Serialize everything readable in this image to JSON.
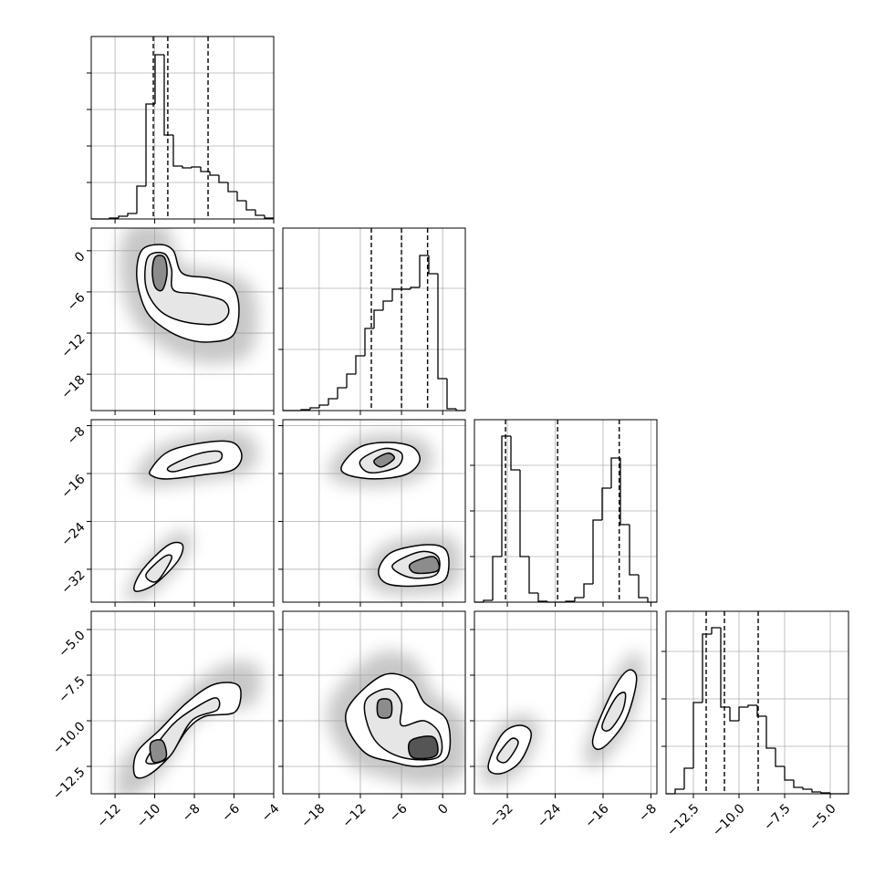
{
  "chart_data": {
    "type": "corner",
    "color": "#000000",
    "grid": true,
    "parameters": [
      {
        "lim": [
          -13.2,
          -4
        ],
        "ticks": [
          {
            "value": -12,
            "label": "−12"
          },
          {
            "value": -10,
            "label": "−10"
          },
          {
            "value": -8,
            "label": "−8"
          },
          {
            "value": -6,
            "label": "−6"
          },
          {
            "value": -4,
            "label": "−4"
          }
        ],
        "quantiles": [
          -10.07,
          -9.34,
          -7.31
        ],
        "hist": {
          "bins": [
            -13.2,
            -12.74,
            -12.28,
            -11.82,
            -11.36,
            -10.9,
            -10.44,
            -9.98,
            -9.52,
            -9.06,
            -8.6,
            -8.14,
            -7.68,
            -7.22,
            -6.76,
            -6.3,
            -5.84,
            -5.38,
            -4.92,
            -4.46,
            -4.0
          ],
          "counts": [
            0,
            0,
            1,
            3,
            6,
            36,
            126,
            180,
            92,
            58,
            56,
            57,
            52,
            48,
            40,
            30,
            20,
            10,
            4,
            1
          ],
          "ylim": [
            0,
            200
          ],
          "yticks": [
            40,
            80,
            120,
            160
          ]
        },
        "joint": []
      },
      {
        "lim": [
          -23.3,
          3.3
        ],
        "ticks": [
          {
            "value": -18,
            "label": "−18"
          },
          {
            "value": -12,
            "label": "−12"
          },
          {
            "value": -6,
            "label": "−6"
          },
          0
        ],
        "quantiles": [
          -10.4,
          -6.0,
          -2.2
        ],
        "hist": {
          "bins": [
            -23.3,
            -21.97,
            -20.64,
            -19.31,
            -17.98,
            -16.65,
            -15.32,
            -13.99,
            -12.66,
            -11.33,
            -10.0,
            -8.67,
            -7.34,
            -6.01,
            -4.68,
            -3.35,
            -2.02,
            -0.69,
            0.64,
            1.97,
            3.3
          ],
          "counts": [
            0,
            0,
            1,
            3,
            6,
            13,
            25,
            40,
            60,
            90,
            110,
            120,
            133,
            133,
            135,
            170,
            150,
            35,
            2,
            0
          ],
          "ylim": [
            0,
            200
          ],
          "yticks": [
            67,
            134
          ]
        },
        "joint": [
          {
            "contours": [
              {
                "x": [
                  -10.67,
                  -9.75,
                  -9.06,
                  -8.6,
                  -7.22,
                  -6.07,
                  -5.75,
                  -6.07,
                  -7.22,
                  -8.37,
                  -9.52,
                  -10.44,
                  -10.9
                ],
                "y": [
                  0.0,
                  0.9,
                  0.0,
                  -3.3,
                  -4.0,
                  -5.3,
                  -8.7,
                  -12.4,
                  -13.3,
                  -12.9,
                  -11.3,
                  -8.7,
                  -4.0
                ]
              },
              {
                "x": [
                  -10.35,
                  -9.52,
                  -9.15,
                  -9.06,
                  -7.91,
                  -6.53,
                  -6.3,
                  -6.99,
                  -8.6,
                  -9.75,
                  -10.44
                ],
                "y": [
                  -0.96,
                  -0.42,
                  -2.7,
                  -5.7,
                  -6.3,
                  -7.3,
                  -9.3,
                  -10.7,
                  -10.3,
                  -8.7,
                  -5.3
                ]
              },
              {
                "x": [
                  -9.98,
                  -9.52,
                  -9.38,
                  -9.61,
                  -9.98,
                  -10.12
                ],
                "y": [
                  -0.96,
                  -0.96,
                  -3.3,
                  -5.7,
                  -5.3,
                  -3.1
                ]
              }
            ]
          }
        ]
      },
      {
        "lim": [
          -37.5,
          -7
        ],
        "ticks": [
          {
            "value": -32,
            "label": "−32"
          },
          {
            "value": -24,
            "label": "−24"
          },
          {
            "value": -16,
            "label": "−16"
          },
          {
            "value": -8,
            "label": "−8"
          }
        ],
        "quantiles": [
          -32.3,
          -23.6,
          -13.3
        ],
        "hist": {
          "bins": [
            -37.5,
            -35.975,
            -34.45,
            -32.925,
            -31.4,
            -29.875,
            -28.35,
            -26.825,
            -25.3,
            -23.775,
            -22.25,
            -20.725,
            -19.2,
            -17.675,
            -16.15,
            -14.625,
            -13.1,
            -11.575,
            -10.05,
            -8.525,
            -7.0
          ],
          "counts": [
            0,
            2,
            50,
            182,
            145,
            50,
            10,
            1,
            0,
            0,
            1,
            5,
            20,
            90,
            125,
            158,
            85,
            30,
            5,
            0
          ],
          "ylim": [
            0,
            200
          ],
          "yticks": [
            50,
            100,
            150
          ]
        },
        "joint": [
          {
            "contours": [
              {
                "x": [
                  -10.21,
                  -9.29,
                  -7.45,
                  -6.07,
                  -5.61,
                  -6.07,
                  -7.45,
                  -9.29,
                  -10.07
                ],
                "y": [
                  -15.4,
                  -12.3,
                  -10.8,
                  -10.8,
                  -13.1,
                  -15.4,
                  -16.15,
                  -16.9,
                  -16.5
                ]
              },
              {
                "x": [
                  -9.29,
                  -7.91,
                  -6.76,
                  -6.76,
                  -8.14,
                  -9.06
                ],
                "y": [
                  -14.9,
                  -12.8,
                  -12.3,
                  -13.9,
                  -14.9,
                  -15.7
                ]
              },
              {
                "x": [
                  -11.0,
                  -10.44,
                  -9.29,
                  -8.6,
                  -8.83,
                  -9.98,
                  -10.9
                ],
                "y": [
                  -34.45,
                  -31.4,
                  -27.9,
                  -27.9,
                  -30.6,
                  -34.45,
                  -35.7
                ]
              },
              {
                "x": [
                  -10.44,
                  -9.52,
                  -9.15,
                  -9.89
                ],
                "y": [
                  -32.9,
                  -29.9,
                  -30.2,
                  -34.0
                ]
              }
            ]
          },
          {
            "contours": [
              {
                "x": [
                  -14.66,
                  -12.0,
                  -8.0,
                  -4.41,
                  -3.35,
                  -5.35,
                  -10.0,
                  -13.99
                ],
                "y": [
                  -14.6,
                  -11.55,
                  -10.8,
                  -11.55,
                  -13.85,
                  -16.15,
                  -16.9,
                  -16.15
                ]
              },
              {
                "x": [
                  -12.0,
                  -8.67,
                  -6.01,
                  -6.68,
                  -10.66
                ],
                "y": [
                  -13.85,
                  -11.85,
                  -12.6,
                  -14.9,
                  -15.85
                ]
              },
              {
                "x": [
                  -10.0,
                  -8.0,
                  -7.07,
                  -8.94
                ],
                "y": [
                  -13.85,
                  -12.6,
                  -13.5,
                  -14.9
                ]
              },
              {
                "x": [
                  -9.34,
                  -7.34,
                  -2.02,
                  0.64,
                  0.37,
                  -3.35,
                  -8.0
                ],
                "y": [
                  -32.2,
                  -29.1,
                  -27.9,
                  -29.1,
                  -33.7,
                  -34.75,
                  -34.45
                ]
              },
              {
                "x": [
                  -7.34,
                  -3.35,
                  -0.69,
                  -0.96,
                  -4.68
                ],
                "y": [
                  -31.4,
                  -29.1,
                  -29.9,
                  -32.9,
                  -33.4
                ]
              },
              {
                "x": [
                  -4.68,
                  -1.35,
                  -0.69,
                  -4.02
                ],
                "y": [
                  -31.1,
                  -29.9,
                  -32.2,
                  -32.6
                ]
              }
            ]
          }
        ]
      },
      {
        "lim": [
          -14,
          -4
        ],
        "ticks": [
          {
            "value": -12.5,
            "label": "−12.5"
          },
          {
            "value": -10,
            "label": "−10.0"
          },
          {
            "value": -7.5,
            "label": "−7.5"
          },
          {
            "value": -5,
            "label": "−5.0"
          }
        ],
        "quantiles": [
          -11.8,
          -10.8,
          -8.95
        ],
        "hist": {
          "bins": [
            -14,
            -13.5,
            -13,
            -12.5,
            -12,
            -11.5,
            -11,
            -10.5,
            -10,
            -9.5,
            -9,
            -8.5,
            -8,
            -7.5,
            -7,
            -6.5,
            -6,
            -5.5,
            -5,
            -4.5,
            -4
          ],
          "counts": [
            0,
            5,
            28,
            100,
            175,
            182,
            95,
            80,
            95,
            97,
            85,
            50,
            30,
            15,
            7,
            5,
            2,
            1,
            0,
            0
          ],
          "ylim": [
            0,
            200
          ],
          "yticks": [
            52,
            104,
            156
          ]
        },
        "joint": [
          {
            "contours": [
              {
                "x": [
                  -11.0,
                  -10.9,
                  -9.75,
                  -8.37,
                  -6.99,
                  -5.75,
                  -5.93,
                  -7.45,
                  -8.37,
                  -9.29,
                  -10.35
                ],
                "y": [
                  -13.0,
                  -11.75,
                  -10.5,
                  -9.0,
                  -8.0,
                  -8.1,
                  -9.5,
                  -9.75,
                  -10.5,
                  -12.0,
                  -13.0
                ]
              },
              {
                "x": [
                  -10.44,
                  -9.52,
                  -8.6,
                  -6.99,
                  -6.84,
                  -8.14,
                  -9.29
                ],
                "y": [
                  -12.25,
                  -10.75,
                  -9.75,
                  -8.75,
                  -9.4,
                  -10.0,
                  -12.0
                ]
              },
              {
                "x": [
                  -10.21,
                  -9.61,
                  -9.43,
                  -10.07
                ],
                "y": [
                  -11.25,
                  -11.1,
                  -12.0,
                  -12.25
                ]
              }
            ]
          },
          {
            "contours": [
              {
                "x": [
                  -13.33,
                  -8.67,
                  -4.68,
                  -2.68,
                  0.64,
                  0.64,
                  -3.35,
                  -7.34,
                  -11.33,
                  -13.99
                ],
                "y": [
                  -9.0,
                  -7.5,
                  -7.75,
                  -9.0,
                  -10.0,
                  -12.0,
                  -12.5,
                  -12.25,
                  -11.75,
                  -10.25
                ]
              },
              {
                "x": [
                  -11.33,
                  -8.0,
                  -6.01,
                  -6.01,
                  -2.68,
                  -0.42,
                  -0.69,
                  -6.01,
                  -10.0
                ],
                "y": [
                  -9.0,
                  -8.25,
                  -9.0,
                  -10.25,
                  -10.0,
                  -10.75,
                  -12.0,
                  -12.0,
                  -11.0
                ]
              },
              {
                "x": [
                  -9.34,
                  -7.61,
                  -7.61,
                  -9.34
                ],
                "y": [
                  -8.9,
                  -8.9,
                  -9.75,
                  -9.75
                ]
              },
              {
                "x": [
                  -4.68,
                  -1.35,
                  -0.96,
                  -4.41
                ],
                "y": [
                  -11.1,
                  -10.9,
                  -11.9,
                  -12.0
                ]
              }
            ]
          },
          {
            "contours": [
              {
                "x": [
                  -35.2,
                  -32.9,
                  -29.9,
                  -28.0,
                  -29.9,
                  -33.2
                ],
                "y": [
                  -12.5,
                  -10.75,
                  -10.25,
                  -10.75,
                  -12.25,
                  -12.9
                ]
              },
              {
                "x": [
                  -33.7,
                  -31.4,
                  -30.2,
                  -32.2
                ],
                "y": [
                  -12.0,
                  -11.0,
                  -11.25,
                  -12.25
                ]
              },
              {
                "x": [
                  -17.7,
                  -14.6,
                  -11.9,
                  -10.4,
                  -12.3,
                  -16.15
                ],
                "y": [
                  -11.0,
                  -8.5,
                  -7.25,
                  -7.75,
                  -10.0,
                  -11.5
                ]
              },
              {
                "x": [
                  -16.15,
                  -13.9,
                  -12.3,
                  -12.8,
                  -14.9
                ],
                "y": [
                  -10.25,
                  -8.75,
                  -8.5,
                  -9.5,
                  -10.5
                ]
              }
            ]
          }
        ]
      }
    ]
  }
}
